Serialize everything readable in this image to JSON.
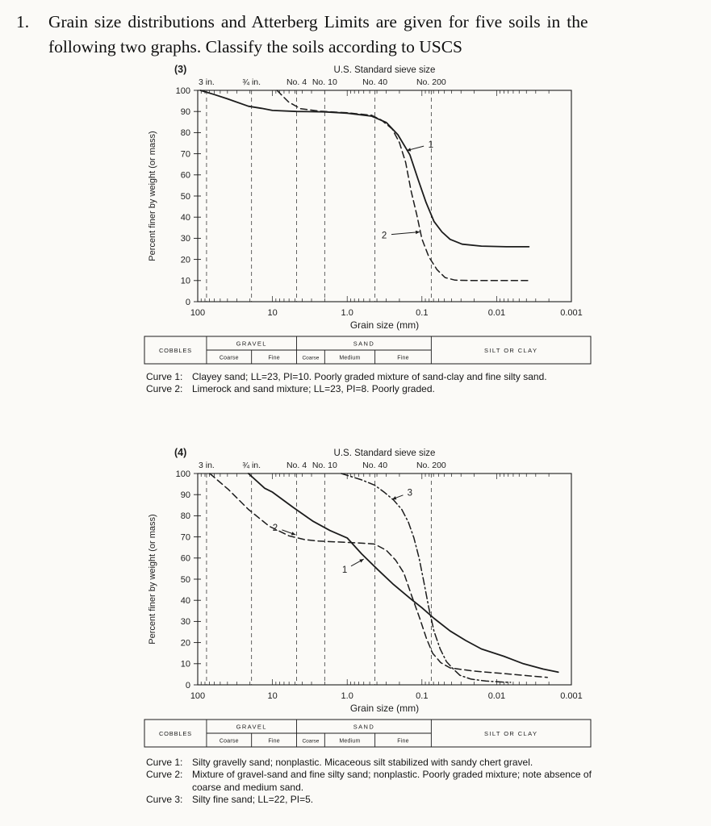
{
  "page": {
    "background": "#fbfaf7",
    "ink": "#1c1c1c"
  },
  "problem": {
    "number": "1.",
    "lines": [
      "Grain size distributions and Atterberg Limits are given for five soils in the",
      "following two graphs.  Classify the soils according to USCS"
    ]
  },
  "size_table": {
    "cobbles": "COBBLES",
    "gravel": "GRAVEL",
    "gravel_sub": [
      "Coarse",
      "Fine"
    ],
    "sand": "SAND",
    "sand_sub": [
      "Coarse",
      "Medium",
      "Fine"
    ],
    "silt": "SILT OR CLAY",
    "bounds_mm": [
      76.2,
      19.05,
      4.75,
      2.0,
      0.425,
      0.075
    ]
  },
  "chart_data": [
    {
      "type": "line",
      "figure_label": "(3)",
      "title": "U.S. Standard sieve size",
      "xlabel": "Grain size (mm)",
      "ylabel": "Percent finer by weight (or mass)",
      "x_scale": "log",
      "x_range_mm": [
        100,
        0.001
      ],
      "x_tick_labels": [
        "100",
        "10",
        "1.0",
        "0.1",
        "0.01",
        "0.001"
      ],
      "x_tick_values": [
        100,
        10,
        1,
        0.1,
        0.01,
        0.001
      ],
      "ylim": [
        0,
        100
      ],
      "y_tick_step": 10,
      "grid": "sieve-lines-only",
      "sieves": [
        {
          "label": "3 in.",
          "mm": 76.2
        },
        {
          "label": "¾ in.",
          "mm": 19.05
        },
        {
          "label": "No. 4",
          "mm": 4.75
        },
        {
          "label": "No. 10",
          "mm": 2.0
        },
        {
          "label": "No. 40",
          "mm": 0.425
        },
        {
          "label": "No. 200",
          "mm": 0.075
        }
      ],
      "series": [
        {
          "name": "1",
          "style": "solid",
          "points_mm_pct": [
            [
              92,
              100
            ],
            [
              60,
              98
            ],
            [
              40,
              96
            ],
            [
              21,
              92.5
            ],
            [
              14,
              91.5
            ],
            [
              10,
              90.5
            ],
            [
              4.75,
              90
            ],
            [
              2,
              89.8
            ],
            [
              1,
              89.2
            ],
            [
              0.47,
              87.8
            ],
            [
              0.3,
              84.8
            ],
            [
              0.21,
              79
            ],
            [
              0.145,
              69.5
            ],
            [
              0.113,
              58
            ],
            [
              0.088,
              47
            ],
            [
              0.069,
              38
            ],
            [
              0.054,
              33
            ],
            [
              0.042,
              29.5
            ],
            [
              0.029,
              27.2
            ],
            [
              0.016,
              26.3
            ],
            [
              0.0074,
              26
            ],
            [
              0.0037,
              26
            ]
          ],
          "callout": {
            "label": "1",
            "label_at": [
              0.076,
              74.5
            ],
            "tip_at": [
              0.16,
              71.5
            ]
          }
        },
        {
          "name": "2",
          "style": "dashed",
          "points_mm_pct": [
            [
              8.7,
              100
            ],
            [
              6.1,
              94.5
            ],
            [
              4.2,
              91.3
            ],
            [
              2.25,
              90.1
            ],
            [
              1,
              89.4
            ],
            [
              0.47,
              88.2
            ],
            [
              0.35,
              86
            ],
            [
              0.25,
              81.7
            ],
            [
              0.2,
              75.3
            ],
            [
              0.165,
              65.8
            ],
            [
              0.14,
              52.5
            ],
            [
              0.117,
              41
            ],
            [
              0.1,
              29.7
            ],
            [
              0.081,
              21.3
            ],
            [
              0.063,
              15.2
            ],
            [
              0.049,
              11.4
            ],
            [
              0.036,
              10.2
            ],
            [
              0.02,
              10
            ],
            [
              0.008,
              10
            ],
            [
              0.0035,
              10
            ]
          ],
          "callout": {
            "label": "2",
            "label_at": [
              0.32,
              31.5
            ],
            "tip_at": [
              0.107,
              33
            ]
          }
        }
      ]
    },
    {
      "type": "line",
      "figure_label": "(4)",
      "title": "U.S. Standard sieve size",
      "xlabel": "Grain size (mm)",
      "ylabel": "Percent finer by weight (or mass)",
      "x_scale": "log",
      "x_range_mm": [
        100,
        0.001
      ],
      "x_tick_labels": [
        "100",
        "10",
        "1.0",
        "0.1",
        "0.01",
        "0.001"
      ],
      "x_tick_values": [
        100,
        10,
        1,
        0.1,
        0.01,
        0.001
      ],
      "ylim": [
        0,
        100
      ],
      "y_tick_step": 10,
      "grid": "sieve-lines-only",
      "sieves": [
        {
          "label": "3 in.",
          "mm": 76.2
        },
        {
          "label": "¾ in.",
          "mm": 19.05
        },
        {
          "label": "No. 4",
          "mm": 4.75
        },
        {
          "label": "No. 10",
          "mm": 2.0
        },
        {
          "label": "No. 40",
          "mm": 0.425
        },
        {
          "label": "No. 200",
          "mm": 0.075
        }
      ],
      "series": [
        {
          "name": "1",
          "style": "solid",
          "points_mm_pct": [
            [
              21,
              100
            ],
            [
              12.7,
              93
            ],
            [
              10,
              91.2
            ],
            [
              5.3,
              84
            ],
            [
              2.9,
              77.5
            ],
            [
              1.7,
              73
            ],
            [
              1,
              69.5
            ],
            [
              0.64,
              62
            ],
            [
              0.39,
              54.5
            ],
            [
              0.24,
              47.5
            ],
            [
              0.145,
              41
            ],
            [
              0.1,
              36.5
            ],
            [
              0.069,
              31.5
            ],
            [
              0.042,
              25.5
            ],
            [
              0.026,
              21
            ],
            [
              0.016,
              17
            ],
            [
              0.008,
              13.5
            ],
            [
              0.0044,
              10
            ],
            [
              0.0024,
              7.5
            ],
            [
              0.0015,
              6
            ]
          ],
          "callout": {
            "label": "1",
            "label_at": [
              1.08,
              54.5
            ],
            "tip_at": [
              0.6,
              59.5
            ]
          }
        },
        {
          "name": "2",
          "style": "dashed",
          "points_mm_pct": [
            [
              69,
              100
            ],
            [
              39,
              92.5
            ],
            [
              21,
              83
            ],
            [
              11,
              75
            ],
            [
              6,
              70.5
            ],
            [
              3.7,
              68.7
            ],
            [
              2.4,
              68
            ],
            [
              1,
              67.4
            ],
            [
              0.6,
              67
            ],
            [
              0.43,
              66.6
            ],
            [
              0.3,
              63.7
            ],
            [
              0.225,
              59
            ],
            [
              0.175,
              53
            ],
            [
              0.138,
              42.5
            ],
            [
              0.107,
              31.5
            ],
            [
              0.087,
              22
            ],
            [
              0.072,
              15
            ],
            [
              0.056,
              10.5
            ],
            [
              0.042,
              8
            ],
            [
              0.02,
              6.5
            ],
            [
              0.009,
              5.5
            ],
            [
              0.0044,
              4.5
            ],
            [
              0.0021,
              3.5
            ]
          ],
          "callout": {
            "label": "2",
            "label_at": [
              9.2,
              74.5
            ],
            "tip_at": [
              4.9,
              71
            ]
          }
        },
        {
          "name": "3",
          "style": "dashdot",
          "points_mm_pct": [
            [
              1.2,
              100
            ],
            [
              0.64,
              97
            ],
            [
              0.43,
              94.5
            ],
            [
              0.32,
              91.2
            ],
            [
              0.24,
              87.5
            ],
            [
              0.186,
              83
            ],
            [
              0.152,
              77
            ],
            [
              0.128,
              69.5
            ],
            [
              0.109,
              60
            ],
            [
              0.094,
              48.5
            ],
            [
              0.081,
              36.5
            ],
            [
              0.069,
              25.5
            ],
            [
              0.057,
              17
            ],
            [
              0.047,
              11
            ],
            [
              0.038,
              7.5
            ],
            [
              0.031,
              4.5
            ],
            [
              0.022,
              2.7
            ],
            [
              0.014,
              1.8
            ],
            [
              0.0082,
              1.3
            ],
            [
              0.0065,
              1.2
            ]
          ],
          "callout": {
            "label": "3",
            "label_at": [
              0.145,
              91
            ],
            "tip_at": [
              0.25,
              87.8
            ]
          }
        }
      ]
    }
  ],
  "captions": [
    {
      "items": [
        {
          "label": "Curve 1:",
          "text": "Clayey sand; LL=23, PI=10. Poorly graded mixture of sand-clay and fine silty sand."
        },
        {
          "label": "Curve 2:",
          "text": "Limerock and sand mixture; LL=23, PI=8. Poorly graded."
        }
      ]
    },
    {
      "items": [
        {
          "label": "Curve 1:",
          "text": "Silty gravelly sand; nonplastic. Micaceous silt stabilized with sandy chert gravel."
        },
        {
          "label": "Curve 2:",
          "text": "Mixture of gravel-sand and fine silty sand; nonplastic. Poorly graded mixture; note absence of coarse and medium sand."
        },
        {
          "label": "Curve 3:",
          "text": "Silty fine sand; LL=22, PI=5."
        }
      ]
    }
  ]
}
